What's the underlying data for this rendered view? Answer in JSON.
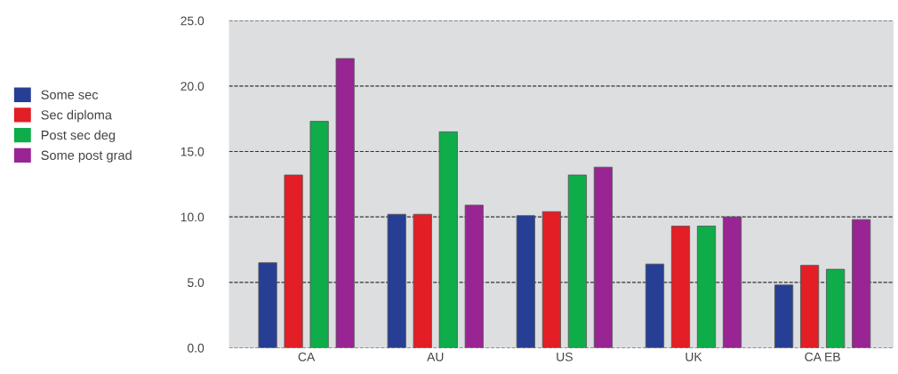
{
  "chart_data": {
    "type": "bar",
    "categories": [
      "CA",
      "AU",
      "US",
      "UK",
      "CA EB"
    ],
    "series": [
      {
        "name": "Some sec",
        "color": "#263f94",
        "values": [
          6.5,
          10.2,
          10.1,
          6.4,
          4.8
        ]
      },
      {
        "name": "Sec diploma",
        "color": "#e31e24",
        "values": [
          13.2,
          10.2,
          10.4,
          9.3,
          6.3
        ]
      },
      {
        "name": "Post sec deg",
        "color": "#0fac4a",
        "values": [
          17.3,
          16.5,
          13.2,
          9.3,
          6.0
        ]
      },
      {
        "name": "Some post grad",
        "color": "#982593",
        "values": [
          22.1,
          10.9,
          13.8,
          10.0,
          9.8
        ]
      }
    ],
    "ylim": [
      0,
      25
    ],
    "yticks": [
      {
        "value": 0,
        "label": "0.0"
      },
      {
        "value": 5,
        "label": "5.0"
      },
      {
        "value": 10,
        "label": "10.0"
      },
      {
        "value": 15,
        "label": "15.0"
      },
      {
        "value": 20,
        "label": "20.0"
      },
      {
        "value": 25,
        "label": "25.0"
      }
    ],
    "grid": "y",
    "legend": "left"
  }
}
